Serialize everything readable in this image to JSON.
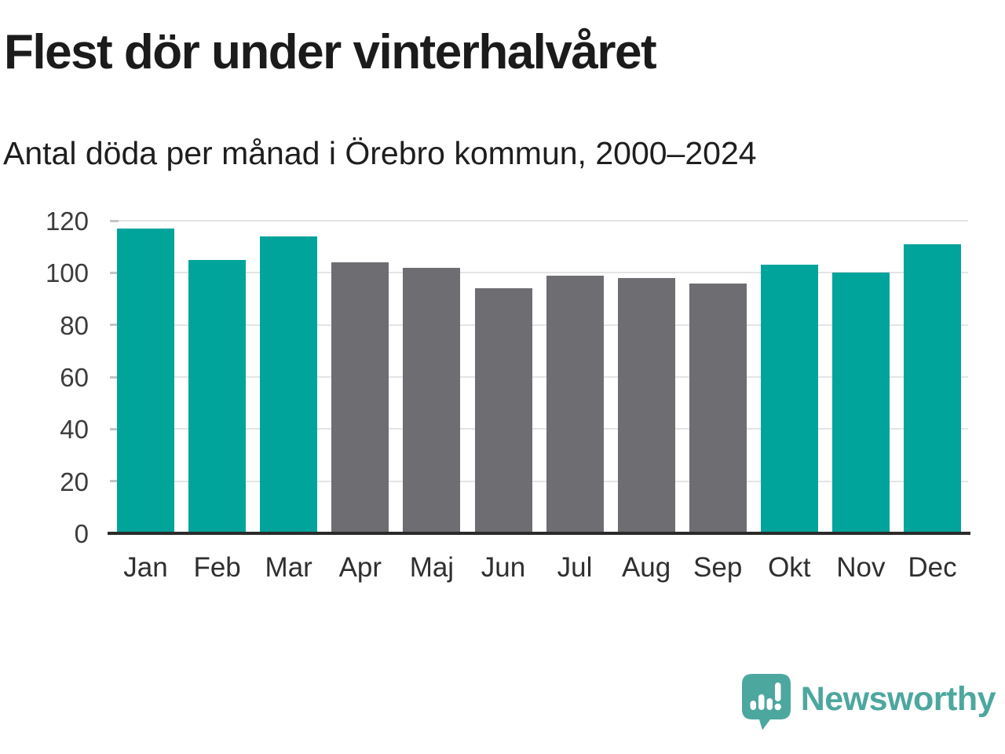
{
  "header": {
    "title": "Flest dör under vinterhalvåret",
    "subtitle": "Antal döda per månad i Örebro kommun, 2000–2024"
  },
  "chart_data": {
    "type": "bar",
    "title": "Flest dör under vinterhalvåret",
    "subtitle": "Antal döda per månad i Örebro kommun, 2000–2024",
    "categories": [
      "Jan",
      "Feb",
      "Mar",
      "Apr",
      "Maj",
      "Jun",
      "Jul",
      "Aug",
      "Sep",
      "Okt",
      "Nov",
      "Dec"
    ],
    "values": [
      117,
      105,
      114,
      104,
      102,
      94,
      99,
      98,
      96,
      103,
      100,
      111
    ],
    "bar_colors": [
      "#00A49B",
      "#00A49B",
      "#00A49B",
      "#6D6D72",
      "#6D6D72",
      "#6D6D72",
      "#6D6D72",
      "#6D6D72",
      "#6D6D72",
      "#00A49B",
      "#00A49B",
      "#00A49B"
    ],
    "palette": {
      "winter_teal": "#00A49B",
      "summer_gray": "#6D6D72"
    },
    "xlabel": "",
    "ylabel": "",
    "ylim": [
      0,
      120
    ],
    "yticks": [
      0,
      20,
      40,
      60,
      80,
      100,
      120
    ],
    "grid": true,
    "legend": "none",
    "gridline_color": "#E4E4E4",
    "tick_color": "#C4C4C4",
    "axis_color": "#2B2B2B",
    "label_color": "#3C3C3C"
  },
  "footer": {
    "logo_text": "Newsworthy",
    "logo_color": "#4CA79F",
    "logo_icon": "newsworthy-speech-bubble-bar-chart-icon"
  }
}
